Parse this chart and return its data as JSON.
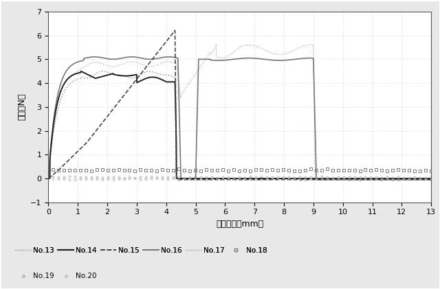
{
  "title": "",
  "xlabel": "引張距離（mm）",
  "ylabel": "荷重（N）",
  "xlim": [
    0,
    13
  ],
  "ylim": [
    -1,
    7
  ],
  "xticks": [
    0,
    1,
    2,
    3,
    4,
    5,
    6,
    7,
    8,
    9,
    10,
    11,
    12,
    13
  ],
  "yticks": [
    -1,
    0,
    1,
    2,
    3,
    4,
    5,
    6,
    7
  ],
  "background_color": "#e8e8e8",
  "plot_bg_color": "#ffffff",
  "legend_entries": [
    {
      "label": "No.13",
      "color": "#999999",
      "linestyle": "dotted",
      "linewidth": 1.0,
      "marker": "None",
      "markersize": 0
    },
    {
      "label": "No.14",
      "color": "#222222",
      "linestyle": "solid",
      "linewidth": 1.5,
      "marker": "None",
      "markersize": 0
    },
    {
      "label": "No.15",
      "color": "#444444",
      "linestyle": "dashed",
      "linewidth": 1.3,
      "marker": "None",
      "markersize": 0
    },
    {
      "label": "No.16",
      "color": "#777777",
      "linestyle": "solid",
      "linewidth": 1.3,
      "marker": "None",
      "markersize": 0
    },
    {
      "label": "No.17",
      "color": "#aaaaaa",
      "linestyle": "dotted",
      "linewidth": 1.0,
      "marker": "None",
      "markersize": 0
    },
    {
      "label": "No.18",
      "color": "#888888",
      "linestyle": "None",
      "linewidth": 1.0,
      "marker": "s",
      "markersize": 3.5
    },
    {
      "label": "No.19",
      "color": "#aaaaaa",
      "linestyle": "None",
      "linewidth": 1.0,
      "marker": "o",
      "markersize": 2.5
    },
    {
      "label": "No.20",
      "color": "#bbbbbb",
      "linestyle": "None",
      "linewidth": 1.0,
      "marker": "o",
      "markersize": 2.5
    }
  ]
}
